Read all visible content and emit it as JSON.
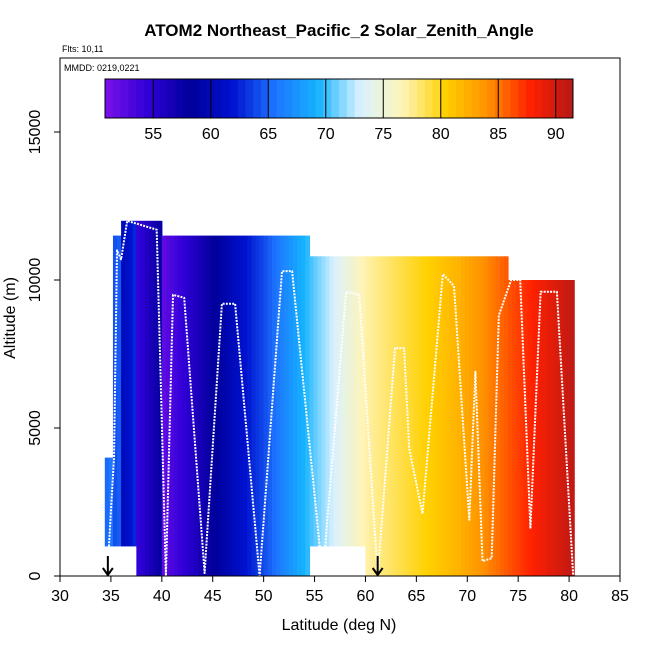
{
  "chart_data": {
    "type": "heatmap",
    "title": "ATOM2 Northeast_Pacific_2 Solar_Zenith_Angle",
    "subtitle_flights": "Flts: 10,11",
    "subtitle_dates": "MMDD: 0219,0221",
    "xlabel": "Latitude (deg N)",
    "ylabel": "Altitude (m)",
    "xlim": [
      30,
      85
    ],
    "ylim": [
      0,
      17500
    ],
    "xticks": [
      "30",
      "35",
      "40",
      "45",
      "50",
      "55",
      "60",
      "65",
      "70",
      "75",
      "80",
      "85"
    ],
    "yticks": [
      "0",
      "5000",
      "10000",
      "15000"
    ],
    "colorbar": {
      "range": [
        50.8,
        91.5
      ],
      "ticks": [
        "55",
        "60",
        "65",
        "70",
        "75",
        "80",
        "85",
        "90"
      ],
      "colors": [
        "#7b10e8",
        "#3000d8",
        "#00009a",
        "#0012d0",
        "#1e74ff",
        "#15b3ff",
        "#d9f2ff",
        "#fff4b8",
        "#ffd000",
        "#ff9000",
        "#ff2000",
        "#b41818"
      ]
    },
    "arrows_lat": [
      34.7,
      61.2
    ],
    "columns": [
      {
        "lat": [
          34.4,
          35.2
        ],
        "alt": [
          1000,
          4000
        ],
        "sza": [
          65,
          66
        ]
      },
      {
        "lat": [
          35.2,
          36.0
        ],
        "alt": [
          1000,
          11500
        ],
        "sza": [
          64,
          65
        ]
      },
      {
        "lat": [
          36.0,
          37.5
        ],
        "alt": [
          1000,
          12000
        ],
        "sza": [
          60,
          63
        ]
      },
      {
        "lat": [
          37.5,
          40.0
        ],
        "alt": [
          0,
          12000
        ],
        "sza": [
          54,
          58
        ]
      },
      {
        "lat": [
          40.0,
          50.0
        ],
        "alt": [
          0,
          11500
        ],
        "sza": [
          52,
          64
        ]
      },
      {
        "lat": [
          50.0,
          54.5
        ],
        "alt": [
          0,
          11500
        ],
        "sza": [
          64,
          70
        ]
      },
      {
        "lat": [
          54.5,
          60.0
        ],
        "alt": [
          1000,
          10800
        ],
        "sza": [
          70,
          77
        ]
      },
      {
        "lat": [
          60.0,
          69.0
        ],
        "alt": [
          0,
          10800
        ],
        "sza": [
          77,
          82
        ]
      },
      {
        "lat": [
          69.0,
          74.0
        ],
        "alt": [
          0,
          10800
        ],
        "sza": [
          82,
          86
        ]
      },
      {
        "lat": [
          74.0,
          80.5
        ],
        "alt": [
          0,
          10000
        ],
        "sza": [
          86,
          91
        ]
      }
    ],
    "flight_track": [
      [
        34.8,
        1000
      ],
      [
        35.3,
        4000
      ],
      [
        35.6,
        11000
      ],
      [
        36.0,
        10700
      ],
      [
        36.6,
        12000
      ],
      [
        39.5,
        11700
      ],
      [
        40.4,
        0
      ],
      [
        41.1,
        9500
      ],
      [
        42.2,
        9400
      ],
      [
        44.2,
        100
      ],
      [
        45.9,
        9200
      ],
      [
        47.2,
        9200
      ],
      [
        49.6,
        0
      ],
      [
        51.8,
        10300
      ],
      [
        52.8,
        10300
      ],
      [
        55.8,
        0
      ],
      [
        58.1,
        9600
      ],
      [
        59.4,
        9500
      ],
      [
        61.2,
        0
      ],
      [
        62.9,
        7700
      ],
      [
        63.8,
        7700
      ],
      [
        64.3,
        4300
      ],
      [
        65.6,
        2100
      ],
      [
        67.6,
        10200
      ],
      [
        68.7,
        9800
      ],
      [
        70.2,
        1900
      ],
      [
        70.8,
        6900
      ],
      [
        71.5,
        500
      ],
      [
        72.4,
        600
      ],
      [
        73.1,
        8800
      ],
      [
        74.3,
        10000
      ],
      [
        75.2,
        10000
      ],
      [
        76.2,
        1600
      ],
      [
        77.2,
        9600
      ],
      [
        78.8,
        9600
      ],
      [
        80.4,
        0
      ]
    ]
  }
}
